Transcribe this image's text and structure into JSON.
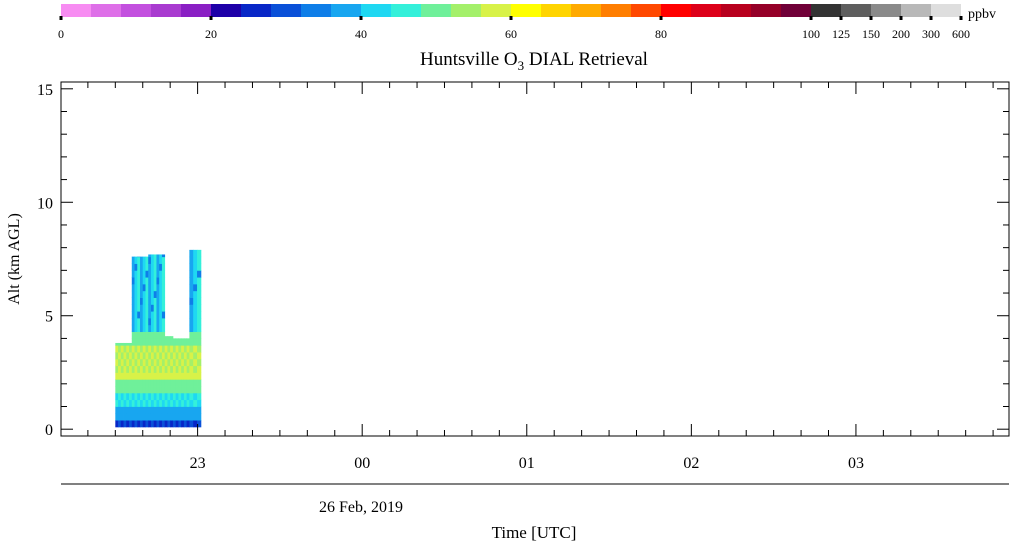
{
  "colorbar": {
    "unit": "ppbv",
    "colors": [
      "#f78cf2",
      "#de6fe8",
      "#c350df",
      "#a93bd0",
      "#8a1fc4",
      "#1e00a8",
      "#0827c7",
      "#0a50d8",
      "#0e7ee8",
      "#18a6f0",
      "#1fd8f2",
      "#34f0da",
      "#6ff09a",
      "#a4f06a",
      "#d8f248",
      "#ffff00",
      "#ffd400",
      "#ffaa00",
      "#ff7e00",
      "#ff4800",
      "#ff0000",
      "#dd0019",
      "#b8001e",
      "#950028",
      "#700038",
      "#333333",
      "#5e5e5e",
      "#8a8a8a",
      "#b8b8b8",
      "#dedede"
    ],
    "ticks": [
      {
        "label": "0",
        "index": 0
      },
      {
        "label": "20",
        "index": 5
      },
      {
        "label": "40",
        "index": 10
      },
      {
        "label": "60",
        "index": 15
      },
      {
        "label": "80",
        "index": 20
      },
      {
        "label": "100",
        "index": 25
      },
      {
        "label": "125",
        "index": 26
      },
      {
        "label": "150",
        "index": 27
      },
      {
        "label": "200",
        "index": 28
      },
      {
        "label": "300",
        "index": 29
      },
      {
        "label": "600",
        "index": 30
      }
    ]
  },
  "chart_data": {
    "type": "heatmap",
    "title_main": "Huntsville O",
    "title_sub": "3",
    "title_rest": " DIAL Retrieval",
    "ylabel": "Alt (km AGL)",
    "xlabel": "Time [UTC]",
    "date_label": "26 Feb, 2019",
    "ylim": [
      -0.3,
      15.3
    ],
    "xlim_hours": [
      22.17,
      3.93
    ],
    "yticks": [
      0,
      5,
      10,
      15
    ],
    "ytick_labels": [
      "0",
      "5",
      "10",
      "15"
    ],
    "xticks_hours": [
      23,
      0,
      1,
      2,
      3
    ],
    "xtick_labels": [
      "23",
      "00",
      "01",
      "02",
      "03"
    ],
    "data_window_hours": [
      22.5,
      23.02
    ],
    "columns": [
      {
        "t0": 22.5,
        "t1": 22.55,
        "top": 3.8
      },
      {
        "t0": 22.55,
        "t1": 22.6,
        "top": 3.8
      },
      {
        "t0": 22.6,
        "t1": 22.65,
        "top": 7.6
      },
      {
        "t0": 22.65,
        "t1": 22.7,
        "top": 7.6
      },
      {
        "t0": 22.7,
        "t1": 22.75,
        "top": 7.7
      },
      {
        "t0": 22.75,
        "t1": 22.8,
        "top": 7.7
      },
      {
        "t0": 22.8,
        "t1": 22.85,
        "top": 4.1
      },
      {
        "t0": 22.85,
        "t1": 22.9,
        "top": 4.0
      },
      {
        "t0": 22.9,
        "t1": 22.95,
        "top": 4.0
      },
      {
        "t0": 22.95,
        "t1": 23.02,
        "top": 7.9
      }
    ]
  }
}
